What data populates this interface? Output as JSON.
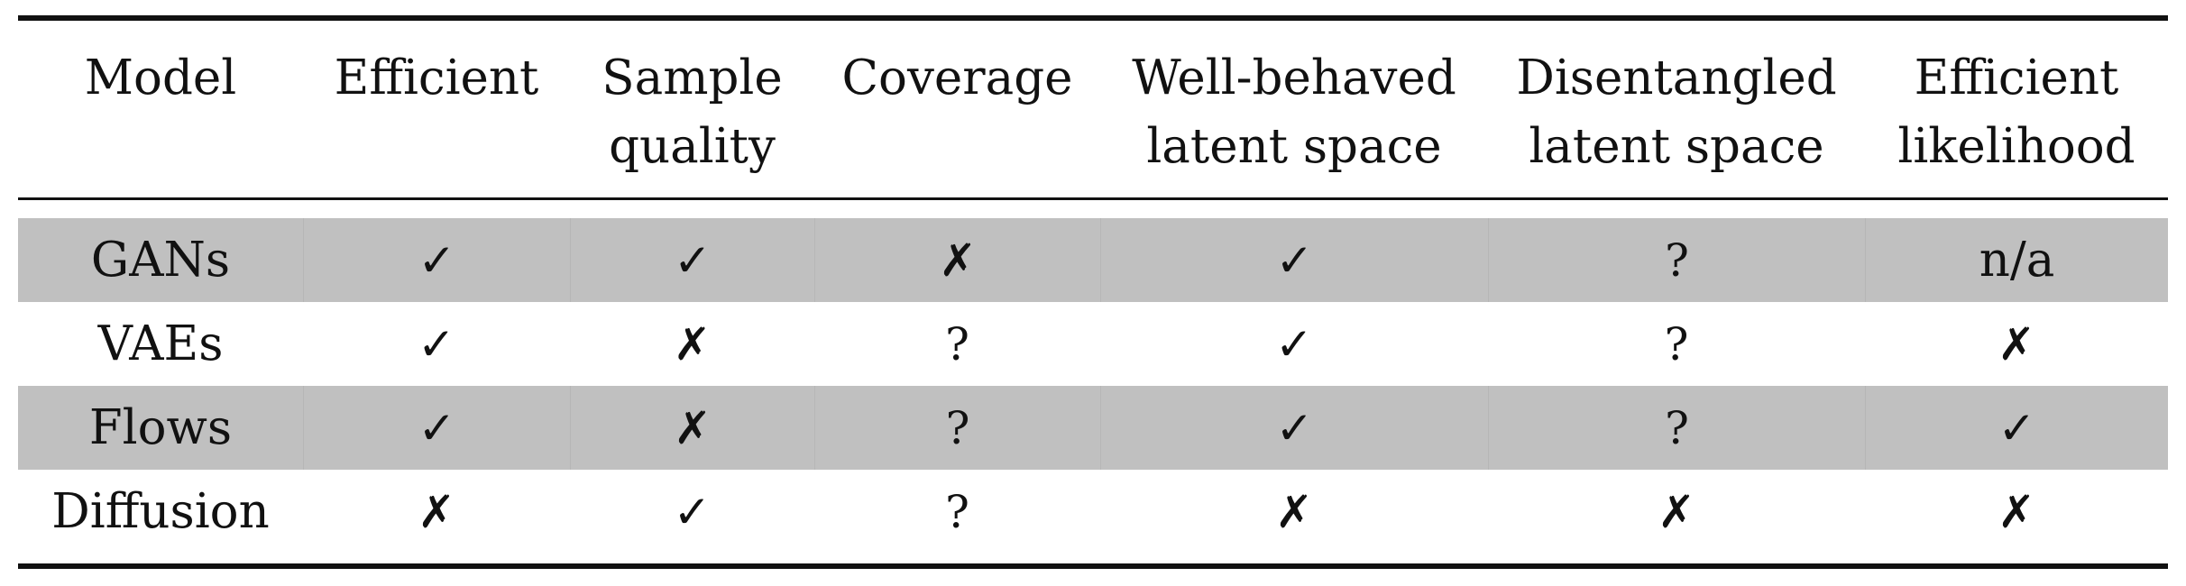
{
  "table": {
    "headers": [
      "Model",
      "Efficient",
      "Sample\nquality",
      "Coverage",
      "Well-behaved\nlatent space",
      "Disentangled\nlatent space",
      "Efficient\nlikelihood"
    ],
    "rows": [
      {
        "model": "GANs",
        "cells": [
          "✓",
          "✓",
          "✗",
          "✓",
          "?",
          "n/a"
        ]
      },
      {
        "model": "VAEs",
        "cells": [
          "✓",
          "✗",
          "?",
          "✓",
          "?",
          "✗"
        ]
      },
      {
        "model": "Flows",
        "cells": [
          "✓",
          "✗",
          "?",
          "✓",
          "?",
          "✓"
        ]
      },
      {
        "model": "Diffusion",
        "cells": [
          "✗",
          "✓",
          "?",
          "✗",
          "✗",
          "✗"
        ]
      }
    ]
  },
  "colors": {
    "shaded_row": "#c0c0c0",
    "rule": "#111111",
    "text": "#111111"
  }
}
